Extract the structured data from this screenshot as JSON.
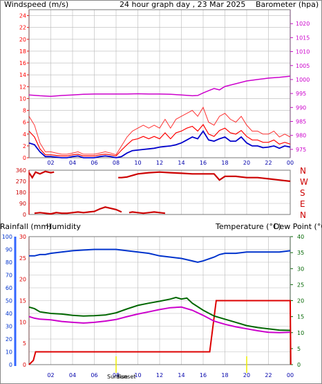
{
  "colors": {
    "wind": "#ff0000",
    "gust": "#ff0000",
    "avgwind": "#0000cc",
    "baro": "#cc00cc",
    "title": "#ffcc00",
    "direction": "#cc0000",
    "humidity": "#0033cc",
    "rain": "#dd0000",
    "temp": "#006600",
    "dewpoint": "#cc00cc",
    "grid": "#b8b8b8",
    "sunmark": "#eeee00"
  },
  "header": {
    "windspeed_label": "Windspeed (m/s)",
    "title": "24 hour graph day , 23 Mar 2025",
    "barometer_label": "Barometer (hpa)"
  },
  "lower_header": {
    "rainfall_label": "Rainfall (mm)",
    "humidity_label": "Humidity",
    "temperature_label": "Temperature (°C)",
    "dewpoint_label": "Dew Point (°C)"
  },
  "sun": {
    "sunrise_label": "Sunrise",
    "sunset_label": "Sunset"
  },
  "chart_data": [
    {
      "type": "line",
      "x_labels": [
        "02",
        "04",
        "06",
        "08",
        "10",
        "12",
        "14",
        "16",
        "18",
        "20",
        "22",
        "00"
      ],
      "left_axis_ticks": [
        "24",
        "22",
        "20",
        "18",
        "16",
        "14",
        "12",
        "10",
        "8",
        "6",
        "4",
        "2",
        "0"
      ],
      "right_axis_ticks": [
        "1020",
        "1015",
        "1010",
        "1005",
        "1000",
        "995",
        "990",
        "985",
        "980",
        "975"
      ],
      "ylim_left": [
        0,
        25
      ],
      "ylim_right": [
        972,
        1025
      ],
      "series": [
        {
          "name": "gust",
          "x": [
            0,
            0.5,
            1,
            1.5,
            2,
            2.5,
            3,
            3.5,
            4,
            4.5,
            5,
            5.5,
            6,
            6.5,
            7,
            7.5,
            8,
            8.5,
            9,
            9.5,
            10,
            10.5,
            11,
            11.5,
            12,
            12.5,
            13,
            13.5,
            14,
            14.5,
            15,
            15.5,
            16,
            16.5,
            17,
            17.5,
            18,
            18.5,
            19,
            19.5,
            20,
            20.5,
            21,
            21.5,
            22,
            22.5,
            23,
            23.5,
            24
          ],
          "values": [
            7,
            5.5,
            2.5,
            1,
            1,
            0.8,
            0.6,
            0.6,
            0.8,
            1,
            0.6,
            0.6,
            0.6,
            0.8,
            1,
            0.8,
            0.5,
            2,
            3.5,
            4.5,
            5,
            5.5,
            5,
            5.5,
            5,
            6.5,
            5,
            6.5,
            7,
            7.5,
            8,
            7,
            8.5,
            6,
            5.5,
            7,
            7.5,
            6.5,
            6,
            7,
            5.5,
            4.5,
            4.5,
            4,
            4,
            4.5,
            3.5,
            4,
            3.5
          ]
        },
        {
          "name": "wind",
          "x": [
            0,
            0.5,
            1,
            1.5,
            2,
            2.5,
            3,
            3.5,
            4,
            4.5,
            5,
            5.5,
            6,
            6.5,
            7,
            7.5,
            8,
            8.5,
            9,
            9.5,
            10,
            10.5,
            11,
            11.5,
            12,
            12.5,
            13,
            13.5,
            14,
            14.5,
            15,
            15.5,
            16,
            16.5,
            17,
            17.5,
            18,
            18.5,
            19,
            19.5,
            20,
            20.5,
            21,
            21.5,
            22,
            22.5,
            23,
            23.5,
            24
          ],
          "values": [
            4.5,
            3.5,
            1.5,
            0.5,
            0.5,
            0.4,
            0.3,
            0.3,
            0.5,
            0.6,
            0.3,
            0.3,
            0.3,
            0.5,
            0.6,
            0.5,
            0.3,
            1.3,
            2.2,
            3,
            3.2,
            3.6,
            3.2,
            3.6,
            3.2,
            4.2,
            3.2,
            4.2,
            4.5,
            5,
            5.3,
            4.5,
            5.6,
            4,
            3.6,
            4.6,
            5,
            4.2,
            4,
            4.6,
            3.6,
            3,
            3,
            2.6,
            2.6,
            3,
            2.3,
            2.6,
            2.3
          ]
        },
        {
          "name": "avgwind",
          "x": [
            0,
            0.5,
            1,
            1.5,
            2,
            2.5,
            3,
            3.5,
            4,
            4.5,
            5,
            5.5,
            6,
            6.5,
            7,
            7.5,
            8,
            8.5,
            9,
            9.5,
            10,
            10.5,
            11,
            11.5,
            12,
            12.5,
            13,
            13.5,
            14,
            14.5,
            15,
            15.5,
            16,
            16.5,
            17,
            17.5,
            18,
            18.5,
            19,
            19.5,
            20,
            20.5,
            21,
            21.5,
            22,
            22.5,
            23,
            23.5,
            24
          ],
          "values": [
            2.5,
            2.2,
            1,
            0.2,
            0.2,
            0.1,
            0,
            0,
            0.2,
            0.3,
            0,
            0,
            0,
            0.2,
            0.3,
            0.2,
            0,
            0.2,
            0.8,
            1.2,
            1.3,
            1.4,
            1.5,
            1.6,
            1.8,
            1.9,
            2,
            2.2,
            2.5,
            3,
            3.5,
            3.2,
            4.5,
            3,
            2.8,
            3.2,
            3.5,
            2.8,
            2.8,
            3.5,
            2.5,
            2,
            2,
            1.7,
            1.8,
            2,
            1.6,
            2,
            1.8
          ]
        },
        {
          "name": "barometer",
          "x": [
            0,
            1,
            2,
            3,
            4,
            5,
            6,
            7,
            8,
            9,
            10,
            11,
            12,
            13,
            14,
            15,
            15.5,
            16,
            16.5,
            17,
            17.5,
            18,
            19,
            20,
            21,
            22,
            23,
            24
          ],
          "values": [
            994.5,
            994.2,
            994,
            994.3,
            994.5,
            994.7,
            994.8,
            994.8,
            994.8,
            994.8,
            994.9,
            994.8,
            994.8,
            994.7,
            994.5,
            994.2,
            994.3,
            995.2,
            996,
            996.8,
            996.3,
            997.5,
            998.5,
            999.5,
            1000,
            1000.5,
            1000.8,
            1001.2
          ]
        }
      ]
    },
    {
      "type": "line",
      "x_labels": [
        "02",
        "04",
        "06",
        "08",
        "10",
        "12",
        "14",
        "16",
        "18",
        "20",
        "22",
        "00"
      ],
      "left_axis_ticks": [
        "360",
        "270",
        "180",
        "90",
        "0"
      ],
      "right_axis_ticks": [
        "N",
        "W",
        "S",
        "E",
        "N"
      ],
      "ylim": [
        0,
        360
      ],
      "series": [
        {
          "name": "direction",
          "x": [
            0,
            0.3,
            0.6,
            1,
            1.5,
            2,
            2.3
          ],
          "values": [
            340,
            300,
            345,
            330,
            350,
            340,
            345
          ]
        },
        {
          "name": "direction",
          "x": [
            8.2,
            8.5,
            9,
            10,
            11,
            12,
            13,
            14,
            15,
            15.5,
            16,
            16.5,
            17,
            17.5,
            18,
            19,
            20,
            21,
            22,
            23,
            24
          ],
          "values": [
            300,
            300,
            305,
            330,
            340,
            345,
            340,
            335,
            330,
            330,
            330,
            330,
            330,
            280,
            310,
            310,
            300,
            300,
            290,
            280,
            270
          ]
        },
        {
          "name": "direction",
          "x": [
            0.5,
            1,
            1.5,
            2,
            2.5,
            3,
            3.5,
            4,
            4.5,
            5,
            5.5,
            6,
            6.5,
            7,
            7.5,
            8,
            8.5
          ],
          "values": [
            10,
            15,
            10,
            5,
            15,
            10,
            10,
            15,
            20,
            15,
            20,
            25,
            45,
            60,
            50,
            40,
            20
          ]
        },
        {
          "name": "direction",
          "x": [
            9.2,
            9.5,
            10,
            10.5,
            11,
            11.5,
            12,
            12.5
          ],
          "values": [
            15,
            20,
            15,
            10,
            15,
            20,
            15,
            10
          ]
        }
      ]
    },
    {
      "type": "line",
      "x_labels": [
        "02",
        "04",
        "06",
        "08",
        "10",
        "12",
        "14",
        "16",
        "18",
        "20",
        "22",
        "00"
      ],
      "humidity_ticks": [
        "100",
        "90",
        "80",
        "70",
        "60",
        "50",
        "40",
        "30",
        "20",
        "10",
        "0"
      ],
      "rain_ticks": [
        "30",
        "25",
        "20",
        "15",
        "10",
        "5",
        "0"
      ],
      "temp_ticks": [
        "40",
        "35",
        "30",
        "25",
        "20",
        "15",
        "10",
        "5",
        "0"
      ],
      "series": [
        {
          "name": "Humidity",
          "x": [
            0,
            0.5,
            1,
            1.5,
            2,
            3,
            4,
            5,
            6,
            7,
            8,
            9,
            10,
            11,
            12,
            13,
            14,
            15,
            15.5,
            16,
            17,
            17.5,
            18,
            19,
            20,
            21,
            22,
            23,
            24
          ],
          "values": [
            85,
            85,
            86,
            86,
            87,
            88,
            89,
            89.5,
            90,
            90,
            90,
            89,
            88,
            87,
            85,
            84,
            83,
            81,
            80,
            81,
            84,
            86,
            87,
            87,
            88,
            88,
            88,
            88,
            89
          ]
        },
        {
          "name": "Rainfall",
          "x": [
            0,
            0.4,
            0.6,
            5,
            10,
            15,
            16.6,
            17.2,
            18,
            24,
            24.05
          ],
          "values": [
            0,
            1,
            3,
            3,
            3,
            3,
            3,
            15,
            15,
            15,
            0
          ]
        },
        {
          "name": "Temperature",
          "x": [
            0,
            0.5,
            1,
            2,
            3,
            4,
            5,
            6,
            7,
            8,
            9,
            10,
            11,
            12,
            13,
            13.5,
            14,
            14.5,
            15,
            16,
            17,
            18,
            19,
            20,
            21,
            22,
            23,
            24
          ],
          "values": [
            18,
            17.5,
            16.5,
            16,
            15.8,
            15.4,
            15.2,
            15.3,
            15.5,
            16.2,
            17.4,
            18.5,
            19.2,
            19.8,
            20.5,
            21,
            20.5,
            20.8,
            19.2,
            17,
            15.2,
            14.2,
            13.2,
            12.2,
            11.6,
            11.2,
            10.8,
            10.7
          ]
        },
        {
          "name": "Dew Point",
          "x": [
            0,
            0.5,
            1,
            2,
            3,
            4,
            5,
            6,
            7,
            8,
            9,
            10,
            11,
            12,
            13,
            14,
            15,
            16,
            17,
            18,
            19,
            20,
            21,
            22,
            23,
            24
          ],
          "values": [
            15,
            14.5,
            14.2,
            14,
            13.5,
            13.2,
            13,
            13.2,
            13.6,
            14.1,
            15,
            15.8,
            16.5,
            17.2,
            17.8,
            18,
            17,
            15.4,
            13.6,
            12.6,
            11.8,
            11.2,
            10.6,
            10.1,
            10,
            10.1
          ]
        }
      ]
    }
  ]
}
